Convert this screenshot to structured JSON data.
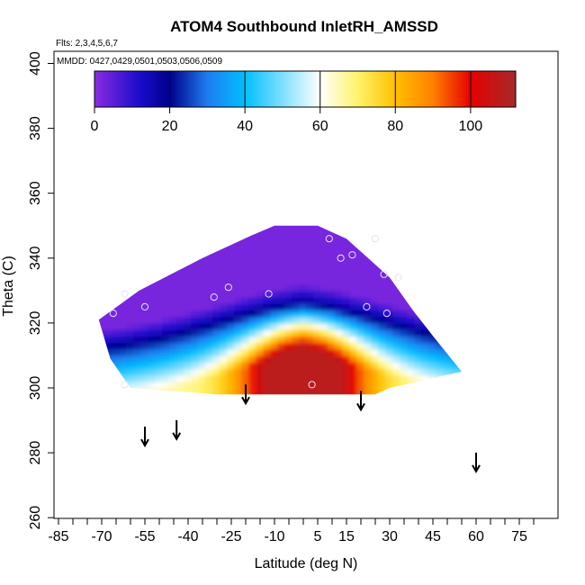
{
  "chart_data": {
    "type": "heatmap",
    "title": "ATOM4 Southbound InletRH_AMSSD",
    "flights_note": "Flts: 2,3,4,5,6,7",
    "dates_note": "MMDD: 0427,0429,0501,0503,0506,0509",
    "xlabel": "Latitude (deg N)",
    "ylabel": "Theta (C)",
    "xlim": [
      -90,
      80
    ],
    "ylim": [
      260,
      405
    ],
    "x_ticks": [
      -85,
      -70,
      -55,
      -40,
      -25,
      -10,
      5,
      15,
      30,
      45,
      60,
      75
    ],
    "x_tick_labels": [
      "-85",
      "-70",
      "-55",
      "-40",
      "-25",
      "-10",
      "5",
      "15",
      "30",
      "45",
      "60",
      "75"
    ],
    "y_ticks": [
      260,
      280,
      300,
      320,
      340,
      360,
      380,
      400
    ],
    "y_tick_labels": [
      "260",
      "280",
      "300",
      "320",
      "340",
      "360",
      "380",
      "400"
    ],
    "colorbar": {
      "range": [
        0,
        112
      ],
      "ticks": [
        0,
        20,
        40,
        60,
        80,
        100
      ],
      "tick_labels": [
        "0",
        "20",
        "40",
        "60",
        "80",
        "100"
      ],
      "stops": [
        {
          "v": 0,
          "c": "#8b2be2"
        },
        {
          "v": 12,
          "c": "#1a0ccc"
        },
        {
          "v": 20,
          "c": "#00008b"
        },
        {
          "v": 30,
          "c": "#1e7cf0"
        },
        {
          "v": 40,
          "c": "#00bfff"
        },
        {
          "v": 60,
          "c": "#ffffff"
        },
        {
          "v": 70,
          "c": "#fff36a"
        },
        {
          "v": 80,
          "c": "#ffc000"
        },
        {
          "v": 90,
          "c": "#ff8000"
        },
        {
          "v": 100,
          "c": "#e60000"
        },
        {
          "v": 112,
          "c": "#a52a2a"
        }
      ]
    },
    "field_outline": [
      [
        -71,
        321
      ],
      [
        -57,
        330
      ],
      [
        -35,
        340
      ],
      [
        -18,
        347
      ],
      [
        -10,
        350
      ],
      [
        5,
        350
      ],
      [
        15,
        346
      ],
      [
        25,
        338
      ],
      [
        30,
        334
      ],
      [
        38,
        324
      ],
      [
        45,
        316
      ],
      [
        55,
        305
      ],
      [
        30,
        300
      ],
      [
        25,
        298
      ],
      [
        -30,
        298
      ],
      [
        -60,
        300
      ],
      [
        -67,
        309
      ]
    ],
    "field_core": {
      "high_rh_region": {
        "lat_range": [
          -20,
          25
        ],
        "theta_range": [
          298,
          312
        ],
        "peak_value": 108
      },
      "dry_upper_value": 2,
      "band_value": 20
    },
    "profile_points": [
      {
        "lat": -62,
        "theta": 329
      },
      {
        "lat": -66,
        "theta": 323
      },
      {
        "lat": -55,
        "theta": 325
      },
      {
        "lat": -31,
        "theta": 328
      },
      {
        "lat": -26,
        "theta": 331
      },
      {
        "lat": -12,
        "theta": 329
      },
      {
        "lat": 9,
        "theta": 346
      },
      {
        "lat": 17,
        "theta": 341
      },
      {
        "lat": 13,
        "theta": 340
      },
      {
        "lat": 25,
        "theta": 346
      },
      {
        "lat": 22,
        "theta": 325
      },
      {
        "lat": 28,
        "theta": 335
      },
      {
        "lat": 33,
        "theta": 334
      },
      {
        "lat": 29,
        "theta": 323
      },
      {
        "lat": 3,
        "theta": 301
      },
      {
        "lat": -62,
        "theta": 301
      }
    ],
    "tropopause_arrows": [
      {
        "lat": -55,
        "theta": 285
      },
      {
        "lat": -44,
        "theta": 287
      },
      {
        "lat": -20,
        "theta": 298
      },
      {
        "lat": 20,
        "theta": 296
      },
      {
        "lat": 60,
        "theta": 277
      }
    ]
  }
}
